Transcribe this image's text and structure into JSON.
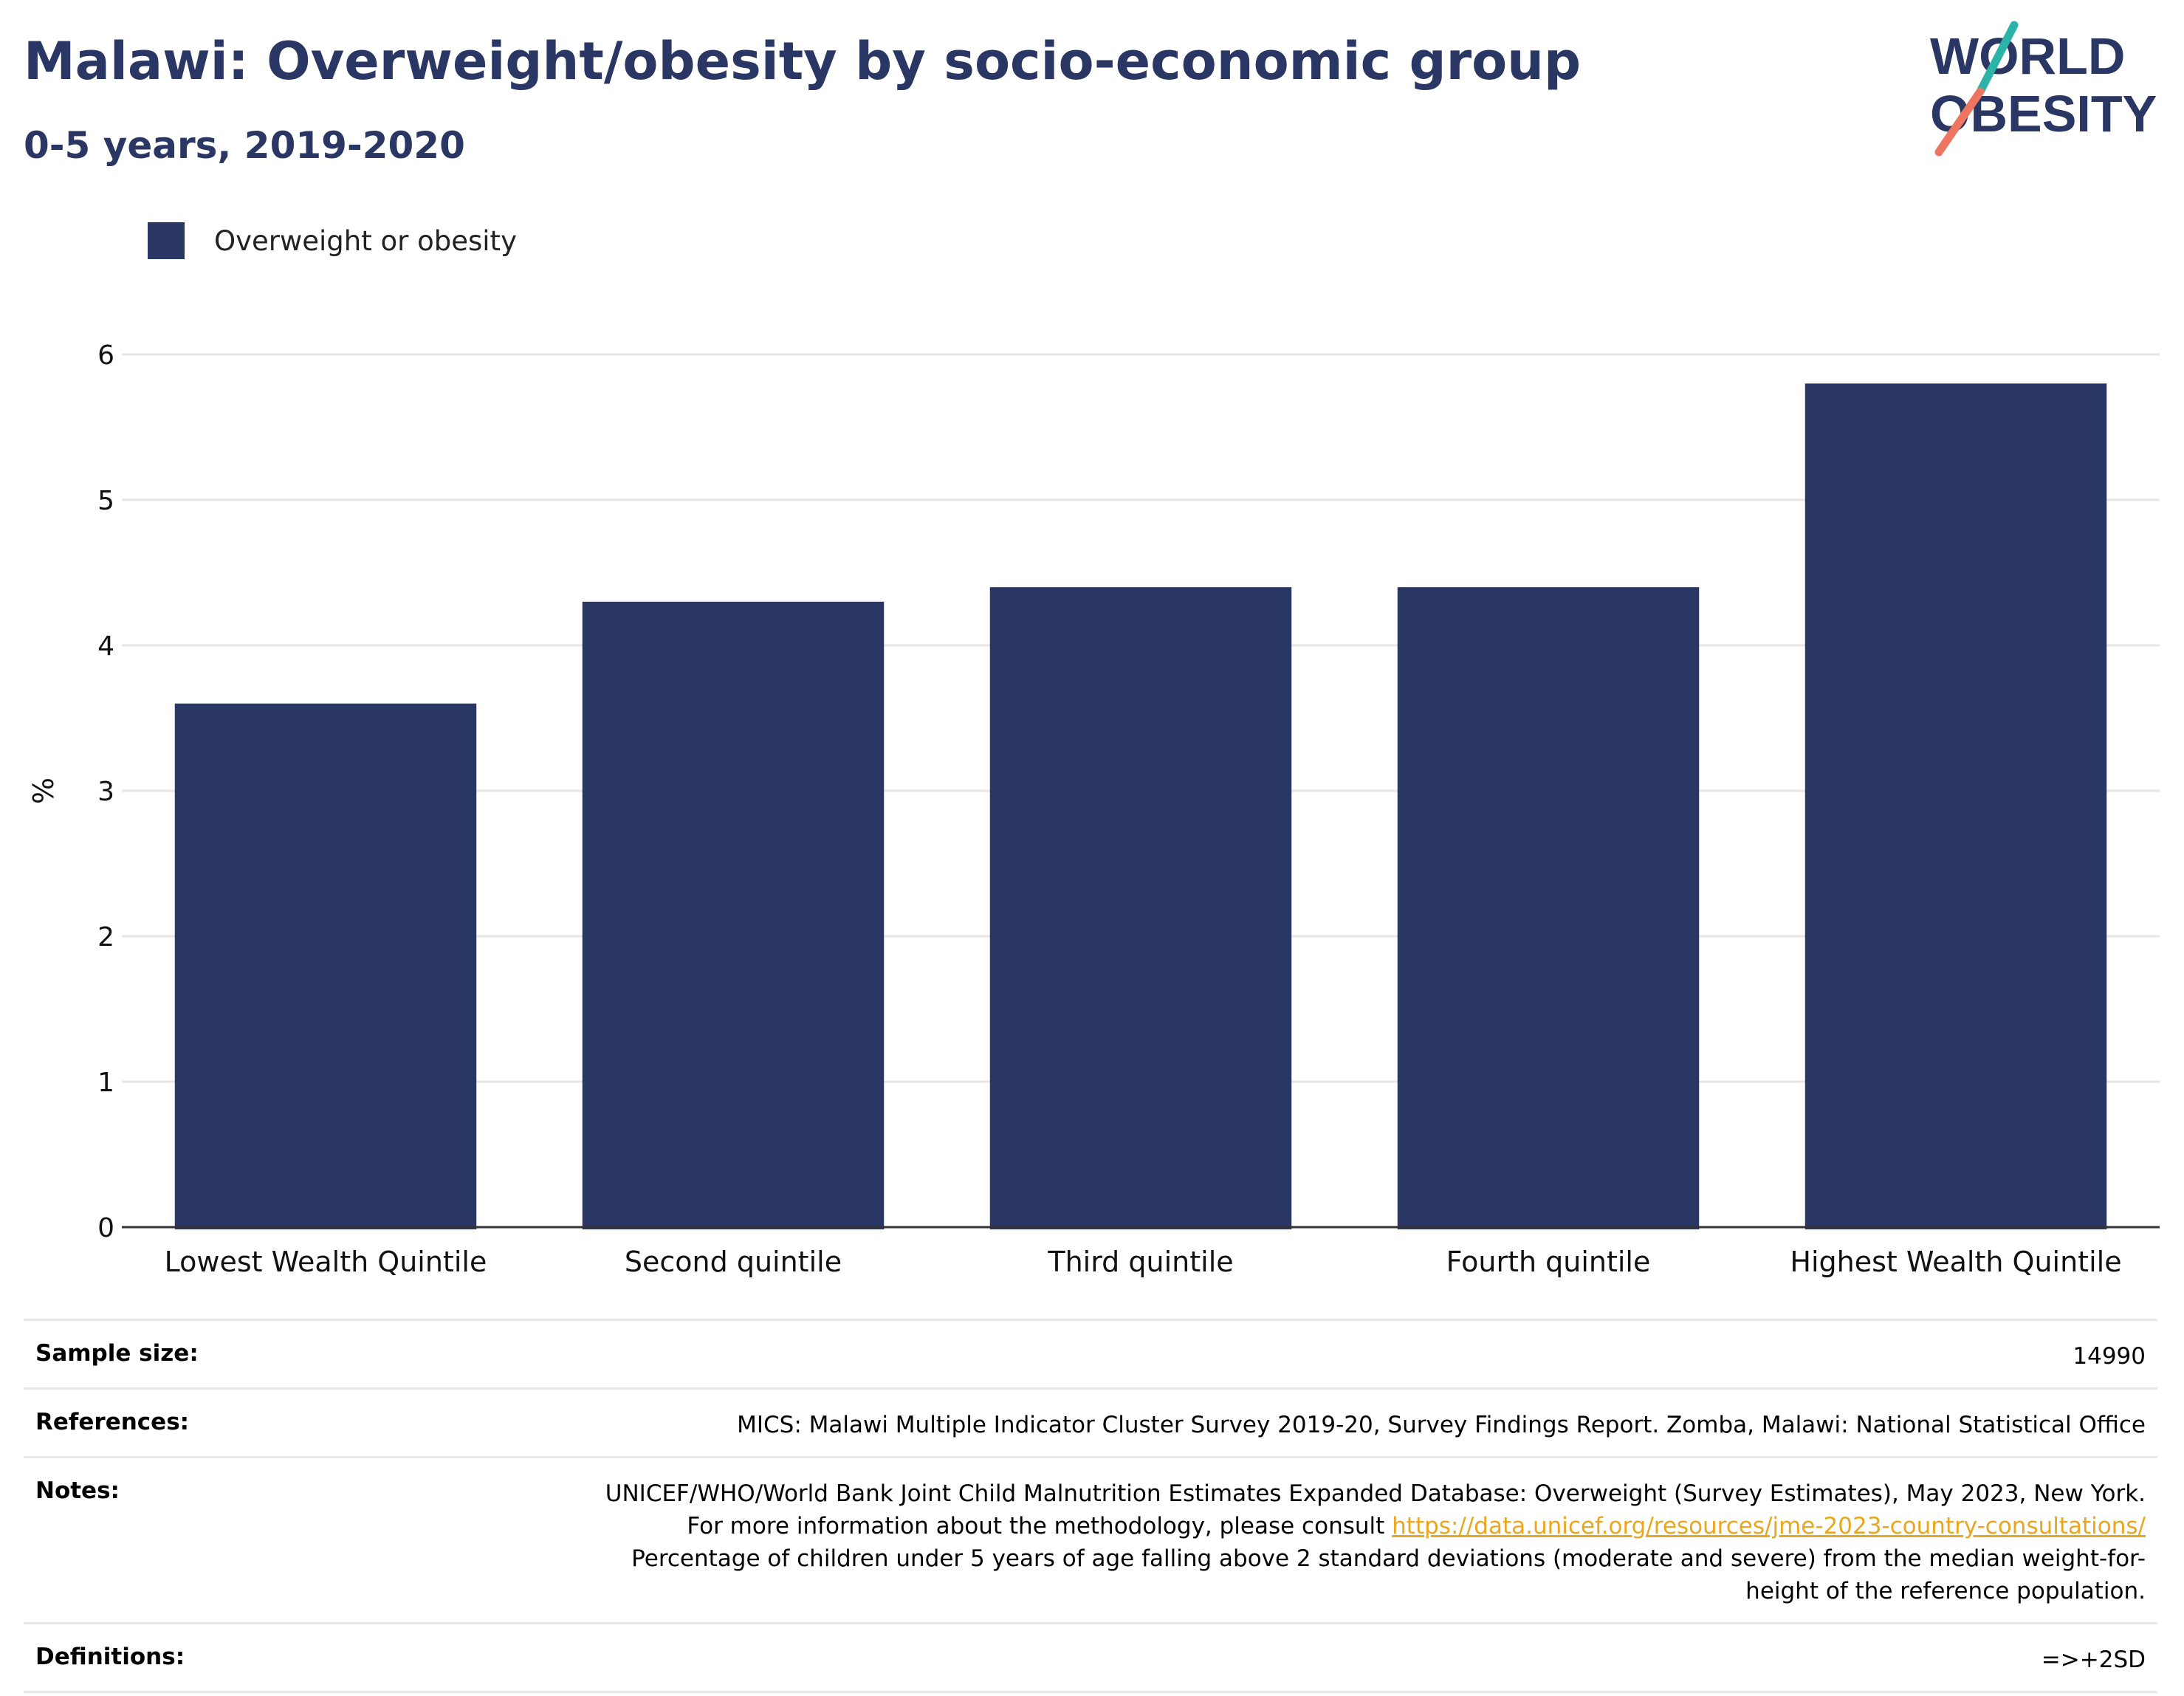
{
  "title": "Malawi: Overweight/obesity by socio-economic group",
  "subtitle": "0-5 years, 2019-2020",
  "logo": {
    "line1": "WORLD",
    "line2": "OBESITY"
  },
  "colors": {
    "bar": "#2a3663",
    "title": "#2a3663",
    "link": "#e8a71f",
    "logo_teal": "#2bb3a8",
    "logo_coral": "#ee7562",
    "grid": "#e6e6e6",
    "axis": "#333333"
  },
  "legend": {
    "label": "Overweight or obesity",
    "position": "top-left"
  },
  "chart_data": {
    "type": "bar",
    "categories": [
      "Lowest Wealth Quintile",
      "Second quintile",
      "Third quintile",
      "Fourth quintile",
      "Highest Wealth Quintile"
    ],
    "series": [
      {
        "name": "Overweight or obesity",
        "values": [
          3.6,
          4.3,
          4.4,
          4.4,
          5.8
        ]
      }
    ],
    "ylabel": "%",
    "xlabel": "",
    "ylim": [
      0,
      6
    ],
    "yticks": [
      0,
      1,
      2,
      3,
      4,
      5,
      6
    ],
    "grid": true
  },
  "info": {
    "sample_size_label": "Sample size:",
    "sample_size_value": "14990",
    "references_label": "References:",
    "references_value": "MICS: Malawi Multiple Indicator Cluster Survey 2019-20, Survey Findings Report. Zomba, Malawi: National Statistical Office",
    "notes_label": "Notes:",
    "notes_text_1": "UNICEF/WHO/World Bank Joint Child Malnutrition Estimates Expanded Database: Overweight (Survey Estimates), May 2023, New York. For more information about the methodology, please consult",
    "notes_link": "https://data.unicef.org/resources/jme-2023-country-consultations/",
    "notes_text_2": "Percentage of children under 5 years of age falling above 2 standard deviations (moderate and severe) from the median weight-for-height of the reference population.",
    "definitions_label": "Definitions:",
    "definitions_value": "=>+2SD"
  }
}
